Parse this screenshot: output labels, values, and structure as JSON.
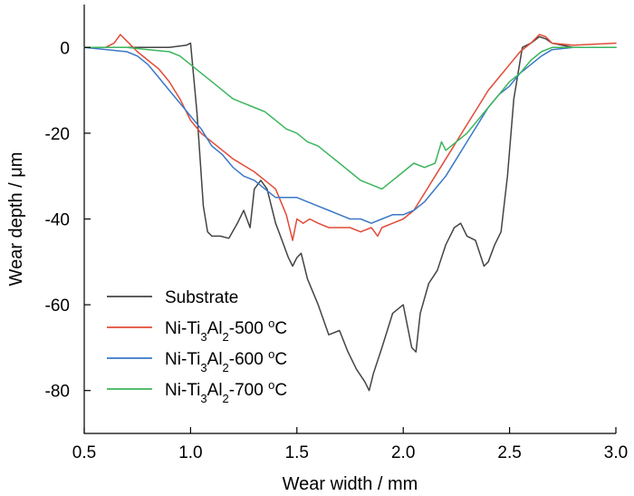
{
  "chart_data": {
    "type": "line",
    "xlabel": "Wear width / mm",
    "ylabel": "Wear depth / μm",
    "xlim": [
      0.5,
      3.0
    ],
    "ylim": [
      -90,
      10
    ],
    "xticks": [
      0.5,
      1.0,
      1.5,
      2.0,
      2.5,
      3.0
    ],
    "xtick_labels": [
      "0.5",
      "1.0",
      "1.5",
      "2.0",
      "2.5",
      "3.0"
    ],
    "yticks": [
      0,
      -20,
      -40,
      -60,
      -80
    ],
    "ytick_labels": [
      "0",
      "-20",
      "-40",
      "-60",
      "-80"
    ],
    "grid": false,
    "legend_position": "bottom-left",
    "series": [
      {
        "name": "Substrate",
        "label_parts": [
          {
            "t": "Substrate",
            "s": ""
          }
        ],
        "color": "#444444",
        "x": [
          0.5,
          0.7,
          0.9,
          0.98,
          1.0,
          1.03,
          1.06,
          1.08,
          1.1,
          1.14,
          1.18,
          1.22,
          1.25,
          1.28,
          1.3,
          1.33,
          1.36,
          1.4,
          1.43,
          1.46,
          1.48,
          1.5,
          1.52,
          1.55,
          1.6,
          1.65,
          1.7,
          1.74,
          1.78,
          1.82,
          1.84,
          1.86,
          1.9,
          1.95,
          2.0,
          2.04,
          2.06,
          2.08,
          2.12,
          2.16,
          2.2,
          2.24,
          2.27,
          2.3,
          2.34,
          2.38,
          2.4,
          2.43,
          2.46,
          2.49,
          2.52,
          2.56,
          2.6,
          2.64,
          2.67,
          2.7,
          2.8,
          3.0
        ],
        "y": [
          0,
          0,
          0,
          0.5,
          1,
          -15,
          -37,
          -43,
          -44,
          -44,
          -44.5,
          -41,
          -38,
          -42,
          -33,
          -31,
          -33,
          -41,
          -45,
          -49,
          -51,
          -49,
          -48,
          -54,
          -60,
          -67,
          -66,
          -71,
          -75,
          -78,
          -80,
          -76,
          -70,
          -62,
          -60,
          -70,
          -71,
          -62,
          -55,
          -52,
          -46,
          -42,
          -41,
          -44,
          -45,
          -51,
          -50,
          -46,
          -43,
          -30,
          -12,
          0,
          1,
          2.5,
          2,
          1,
          0,
          0
        ]
      },
      {
        "name": "Ni-Ti3Al2-500 oC",
        "label_parts": [
          {
            "t": "Ni-Ti",
            "s": ""
          },
          {
            "t": "3",
            "s": "sub"
          },
          {
            "t": "Al",
            "s": ""
          },
          {
            "t": "2",
            "s": "sub"
          },
          {
            "t": "-500 ",
            "s": ""
          },
          {
            "t": "o",
            "s": "sup"
          },
          {
            "t": "C",
            "s": ""
          }
        ],
        "color": "#e24b37",
        "x": [
          0.5,
          0.6,
          0.64,
          0.67,
          0.7,
          0.75,
          0.8,
          0.85,
          0.9,
          0.95,
          1.0,
          1.05,
          1.1,
          1.15,
          1.2,
          1.25,
          1.3,
          1.35,
          1.4,
          1.45,
          1.48,
          1.5,
          1.53,
          1.56,
          1.6,
          1.65,
          1.7,
          1.75,
          1.8,
          1.85,
          1.88,
          1.9,
          1.95,
          2.0,
          2.05,
          2.1,
          2.15,
          2.2,
          2.25,
          2.3,
          2.35,
          2.4,
          2.45,
          2.5,
          2.55,
          2.6,
          2.64,
          2.67,
          2.7,
          2.8,
          3.0
        ],
        "y": [
          0,
          0,
          1,
          3,
          1.5,
          -1,
          -3,
          -5,
          -8,
          -12,
          -17,
          -20,
          -22,
          -24,
          -26,
          -27.5,
          -29,
          -31,
          -33,
          -39,
          -45,
          -40,
          -41,
          -40,
          -41,
          -42,
          -42,
          -42,
          -43,
          -42,
          -44,
          -42,
          -41,
          -40,
          -38,
          -34,
          -30,
          -26,
          -22,
          -18,
          -14,
          -10,
          -7,
          -4,
          -1,
          1,
          3,
          2.5,
          1,
          0.5,
          1
        ]
      },
      {
        "name": "Ni-Ti3Al2-600 oC",
        "label_parts": [
          {
            "t": "Ni-Ti",
            "s": ""
          },
          {
            "t": "3",
            "s": "sub"
          },
          {
            "t": "Al",
            "s": ""
          },
          {
            "t": "2",
            "s": "sub"
          },
          {
            "t": "-600 ",
            "s": ""
          },
          {
            "t": "o",
            "s": "sup"
          },
          {
            "t": "C",
            "s": ""
          }
        ],
        "color": "#3a78c6",
        "x": [
          0.5,
          0.7,
          0.75,
          0.8,
          0.85,
          0.9,
          0.95,
          1.0,
          1.05,
          1.1,
          1.15,
          1.2,
          1.25,
          1.3,
          1.35,
          1.4,
          1.45,
          1.5,
          1.55,
          1.6,
          1.65,
          1.7,
          1.75,
          1.8,
          1.85,
          1.9,
          1.95,
          2.0,
          2.05,
          2.1,
          2.15,
          2.2,
          2.25,
          2.3,
          2.35,
          2.4,
          2.45,
          2.5,
          2.55,
          2.6,
          2.65,
          2.7,
          2.8,
          3.0
        ],
        "y": [
          0,
          -1,
          -2,
          -4,
          -7,
          -10,
          -13,
          -16,
          -19,
          -23,
          -25,
          -28,
          -30,
          -31,
          -33,
          -35,
          -35,
          -35,
          -36,
          -37,
          -38,
          -39,
          -40,
          -40,
          -41,
          -40,
          -39,
          -39,
          -38,
          -36,
          -33,
          -30,
          -26,
          -22,
          -18,
          -14,
          -11,
          -9,
          -6,
          -4,
          -2,
          -0.5,
          0,
          0
        ]
      },
      {
        "name": "Ni-Ti3Al2-700 oC",
        "label_parts": [
          {
            "t": "Ni-Ti",
            "s": ""
          },
          {
            "t": "3",
            "s": "sub"
          },
          {
            "t": "Al",
            "s": ""
          },
          {
            "t": "2",
            "s": "sub"
          },
          {
            "t": "-700 ",
            "s": ""
          },
          {
            "t": "o",
            "s": "sup"
          },
          {
            "t": "C",
            "s": ""
          }
        ],
        "color": "#3cb55c",
        "x": [
          0.5,
          0.7,
          0.8,
          0.9,
          0.95,
          1.0,
          1.05,
          1.1,
          1.15,
          1.2,
          1.25,
          1.3,
          1.35,
          1.4,
          1.45,
          1.5,
          1.55,
          1.6,
          1.65,
          1.7,
          1.75,
          1.8,
          1.85,
          1.9,
          1.95,
          2.0,
          2.05,
          2.1,
          2.15,
          2.18,
          2.2,
          2.25,
          2.3,
          2.35,
          2.4,
          2.45,
          2.5,
          2.55,
          2.6,
          2.65,
          2.7,
          2.8,
          3.0
        ],
        "y": [
          0,
          0,
          -0.5,
          -1,
          -2,
          -4,
          -6,
          -8,
          -10,
          -12,
          -13,
          -14,
          -15,
          -17,
          -19,
          -20,
          -22,
          -23,
          -25,
          -27,
          -29,
          -31,
          -32,
          -33,
          -31,
          -29,
          -27,
          -28,
          -27,
          -22,
          -24,
          -22,
          -20,
          -17,
          -14,
          -11,
          -8,
          -6,
          -3,
          -1,
          0,
          0,
          0
        ]
      }
    ]
  }
}
